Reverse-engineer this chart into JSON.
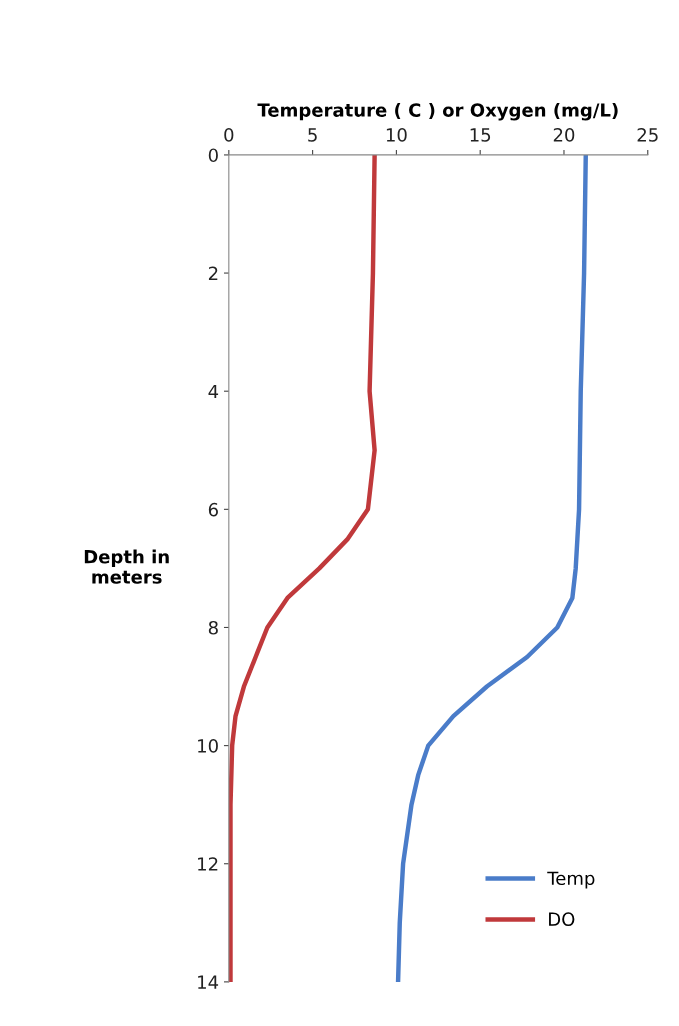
{
  "chart_data": {
    "type": "line",
    "xlabel": "Temperature ( C ) or Oxygen (mg/L)",
    "ylabel": "Depth in\nmeters",
    "xlim": [
      0,
      25
    ],
    "xticks": [
      0,
      5,
      10,
      15,
      20,
      25
    ],
    "ylim": [
      14,
      0
    ],
    "yticks": [
      0,
      2,
      4,
      6,
      8,
      10,
      12,
      14
    ],
    "grid": false,
    "legend": "bottom right",
    "marker": "none",
    "line_style": "solid",
    "series": [
      {
        "name": "Temp",
        "color": "#4a7cc9",
        "x": [
          21.3,
          21.2,
          21.0,
          20.9,
          20.8,
          20.7,
          20.5,
          19.6,
          17.8,
          15.4,
          13.4,
          11.9,
          11.3,
          10.9,
          10.4,
          10.2,
          10.1
        ],
        "values": [
          0,
          2,
          4,
          6,
          6.5,
          7,
          7.5,
          8,
          8.5,
          9,
          9.5,
          10,
          10.5,
          11,
          12,
          13,
          14
        ]
      },
      {
        "name": "DO",
        "color": "#c0393b",
        "x": [
          8.7,
          8.6,
          8.4,
          8.7,
          8.3,
          7.1,
          5.4,
          3.5,
          2.3,
          1.6,
          0.9,
          0.4,
          0.2,
          0.1,
          0.1,
          0.1,
          0.1
        ],
        "values": [
          0,
          2,
          4,
          5,
          6,
          6.5,
          7,
          7.5,
          8,
          8.5,
          9,
          9.5,
          10,
          11,
          12,
          13,
          14
        ]
      }
    ]
  }
}
